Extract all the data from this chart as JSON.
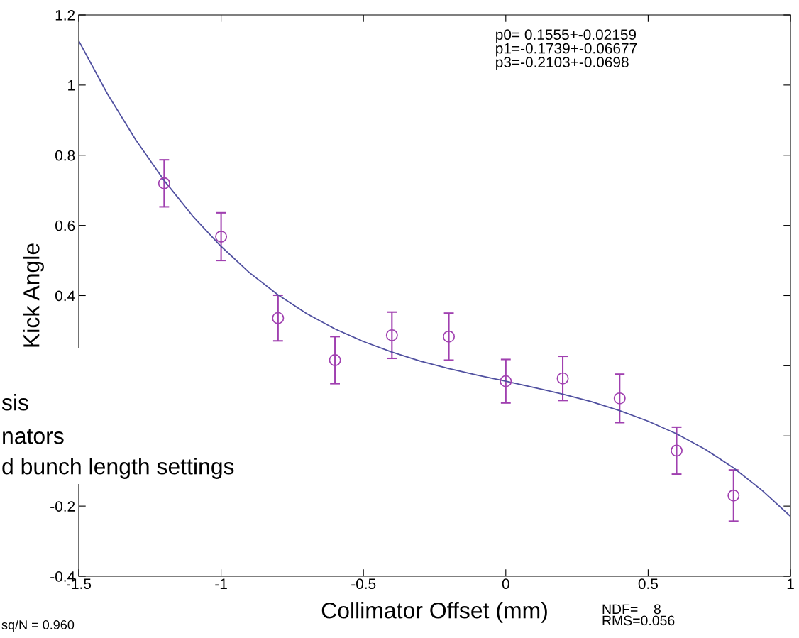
{
  "chart_data": {
    "type": "scatter",
    "xlabel": "Collimator Offset (mm)",
    "ylabel": "Kick Angle",
    "xlim": [
      -1.5,
      1
    ],
    "xticks": [
      -1.5,
      -1,
      -0.5,
      0,
      0.5,
      1
    ],
    "ylim": [
      -0.4,
      1.2
    ],
    "yticks": [
      -0.4,
      -0.2,
      {
        "value": 0,
        "label": null
      },
      {
        "value": 0.2,
        "label": null
      },
      0.4,
      0.6,
      0.8,
      1,
      1.2
    ],
    "grid": false,
    "legend": false,
    "series": [
      {
        "marker": "circle",
        "color": "#a040b0",
        "x": [
          -1.2,
          -1,
          -0.8,
          -0.6,
          -0.4,
          -0.2,
          0,
          0.2,
          0.4,
          0.6,
          0.8
        ],
        "values": [
          0.72,
          0.568,
          0.336,
          0.216,
          0.287,
          0.283,
          0.156,
          0.164,
          0.107,
          -0.042,
          -0.17
        ],
        "errors": [
          0.067,
          0.068,
          0.065,
          0.067,
          0.066,
          0.067,
          0.062,
          0.063,
          0.069,
          0.067,
          0.073
        ]
      },
      {
        "type": "line",
        "marker": "none",
        "line_style": "solid",
        "color": "#5050a0",
        "x": [
          -1.5,
          -1.4,
          -1.3,
          -1.2,
          -1.1,
          -1.0,
          -0.9,
          -0.8,
          -0.7,
          -0.6,
          -0.5,
          -0.4,
          -0.3,
          -0.2,
          -0.1,
          0,
          0.1,
          0.2,
          0.3,
          0.4,
          0.5,
          0.6,
          0.7,
          0.8,
          0.9,
          1.0
        ],
        "values": [
          1.126,
          0.976,
          0.844,
          0.728,
          0.627,
          0.54,
          0.465,
          0.402,
          0.349,
          0.305,
          0.269,
          0.239,
          0.213,
          0.192,
          0.173,
          0.156,
          0.138,
          0.119,
          0.098,
          0.072,
          0.042,
          0.006,
          -0.038,
          -0.091,
          -0.155,
          -0.229
        ]
      }
    ],
    "annotations": [
      "p0= 0.1555+-0.02159\np1=-0.1739+-0.06677\np3=-0.2103+-0.0698",
      "sis",
      "nators",
      "d bunch length settings",
      "sq/N = 0.960",
      "NDF=    8\nRMS=0.056"
    ]
  }
}
